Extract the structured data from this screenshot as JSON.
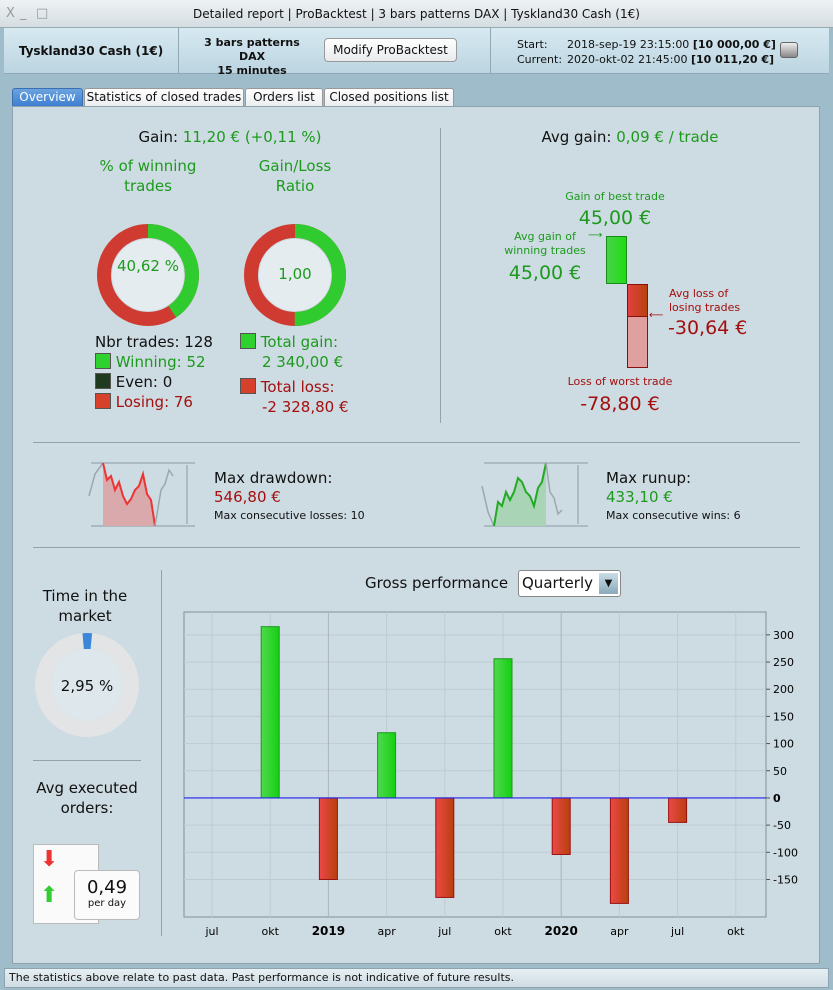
{
  "window": {
    "title": "Detailed report | ProBacktest | 3 bars patterns DAX | Tyskland30 Cash (1€)",
    "controls": [
      "X",
      "_",
      "□"
    ]
  },
  "header": {
    "instrument": "Tyskland30 Cash (1€)",
    "strategy": "3 bars patterns DAX",
    "timeframe": "15 minutes",
    "modify_label": "Modify ProBacktest",
    "start_label": "Start:",
    "start_date": "2018-sep-19 23:15:00",
    "start_value": "[10 000,00 €]",
    "current_label": "Current:",
    "current_date": "2020-okt-02 21:45:00",
    "current_value": "[10 011,20 €]"
  },
  "tabs": [
    {
      "label": "Overview"
    },
    {
      "label": "Statistics of closed trades"
    },
    {
      "label": "Orders list"
    },
    {
      "label": "Closed positions list"
    }
  ],
  "overview": {
    "gain_label": "Gain:",
    "gain_value": "11,20 € (+0,11 %)",
    "winning_title": "% of winning trades",
    "winning_pct": "40,62 %",
    "winning_fraction": 0.4062,
    "ratio_title": "Gain/Loss Ratio",
    "ratio_value": "1,00",
    "ratio_fraction": 0.5,
    "nbr_trades": "Nbr trades: 128",
    "winning": "Winning: 52",
    "even": "Even: 0",
    "losing": "Losing: 76",
    "total_gain_label": "Total gain:",
    "total_gain": "2 340,00 €",
    "total_loss_label": "Total loss:",
    "total_loss": "-2 328,80 €",
    "avg_gain_label": "Avg gain:",
    "avg_gain_value": "0,09 € / trade",
    "best_label": "Gain of best trade",
    "best_value": "45,00 €",
    "avg_win_label": "Avg gain of winning trades",
    "avg_win_value": "45,00 €",
    "avg_loss_label": "Avg loss of losing trades",
    "avg_loss_value": "-30,64 €",
    "worst_label": "Loss of worst trade",
    "worst_value": "-78,80 €",
    "drawdown_label": "Max drawdown:",
    "drawdown_value": "546,80 €",
    "max_losses": "Max consecutive losses: 10",
    "runup_label": "Max runup:",
    "runup_value": "433,10 €",
    "max_wins": "Max consecutive wins: 6",
    "time_label": "Time in the market",
    "time_value": "2,95 %",
    "time_fraction": 0.0295,
    "orders_label": "Avg executed orders:",
    "orders_value": "0,49",
    "orders_unit": "per day",
    "perf_label": "Gross performance",
    "perf_period": "Quarterly"
  },
  "chart_data": {
    "type": "bar",
    "title": "Gross performance",
    "categories": [
      "okt 2018",
      "2019",
      "apr 2019",
      "jul 2019",
      "okt 2019",
      "2020",
      "apr 2020",
      "jul 2020"
    ],
    "values": [
      315,
      -150,
      120,
      -183,
      256,
      -104,
      -194,
      -45
    ],
    "xticks": [
      "jul",
      "okt",
      "2019",
      "apr",
      "jul",
      "okt",
      "2020",
      "apr",
      "jul",
      "okt"
    ],
    "yticks": [
      300,
      250,
      200,
      150,
      100,
      50,
      0,
      -50,
      -100,
      -150
    ],
    "ylim": [
      -219,
      342
    ],
    "grid": true,
    "yaxis": "right",
    "colors": {
      "pos": "#22cc22",
      "neg": "#d23a2a",
      "zero": "#2222ee"
    }
  },
  "status": "The statistics above relate to past data. Past performance is not indicative of future results."
}
